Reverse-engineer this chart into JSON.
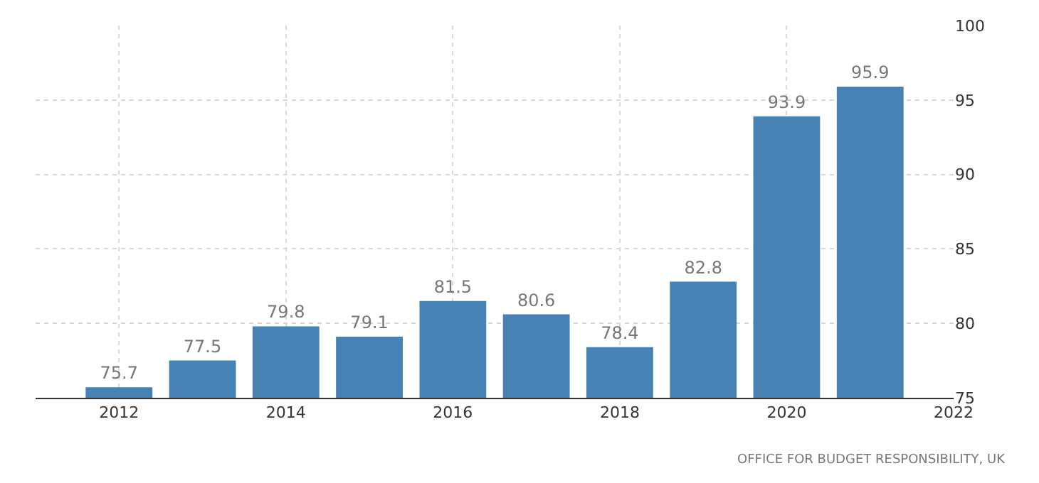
{
  "chart_data": {
    "type": "bar",
    "x": [
      2012,
      2013,
      2014,
      2015,
      2016,
      2017,
      2018,
      2019,
      2020,
      2021
    ],
    "values": [
      75.7,
      77.5,
      79.8,
      79.1,
      81.5,
      80.6,
      78.4,
      82.8,
      93.9,
      95.9
    ],
    "color": "#4682b4",
    "data_labels": true,
    "xlim": [
      2011,
      2022
    ],
    "xticks": [
      2012,
      2014,
      2016,
      2018,
      2020,
      2022
    ],
    "ylim": [
      75,
      100
    ],
    "yticks": [
      75,
      80,
      85,
      90,
      95,
      100
    ],
    "grid": true,
    "annotations": [
      "OFFICE FOR BUDGET RESPONSIBILITY, UK"
    ]
  }
}
